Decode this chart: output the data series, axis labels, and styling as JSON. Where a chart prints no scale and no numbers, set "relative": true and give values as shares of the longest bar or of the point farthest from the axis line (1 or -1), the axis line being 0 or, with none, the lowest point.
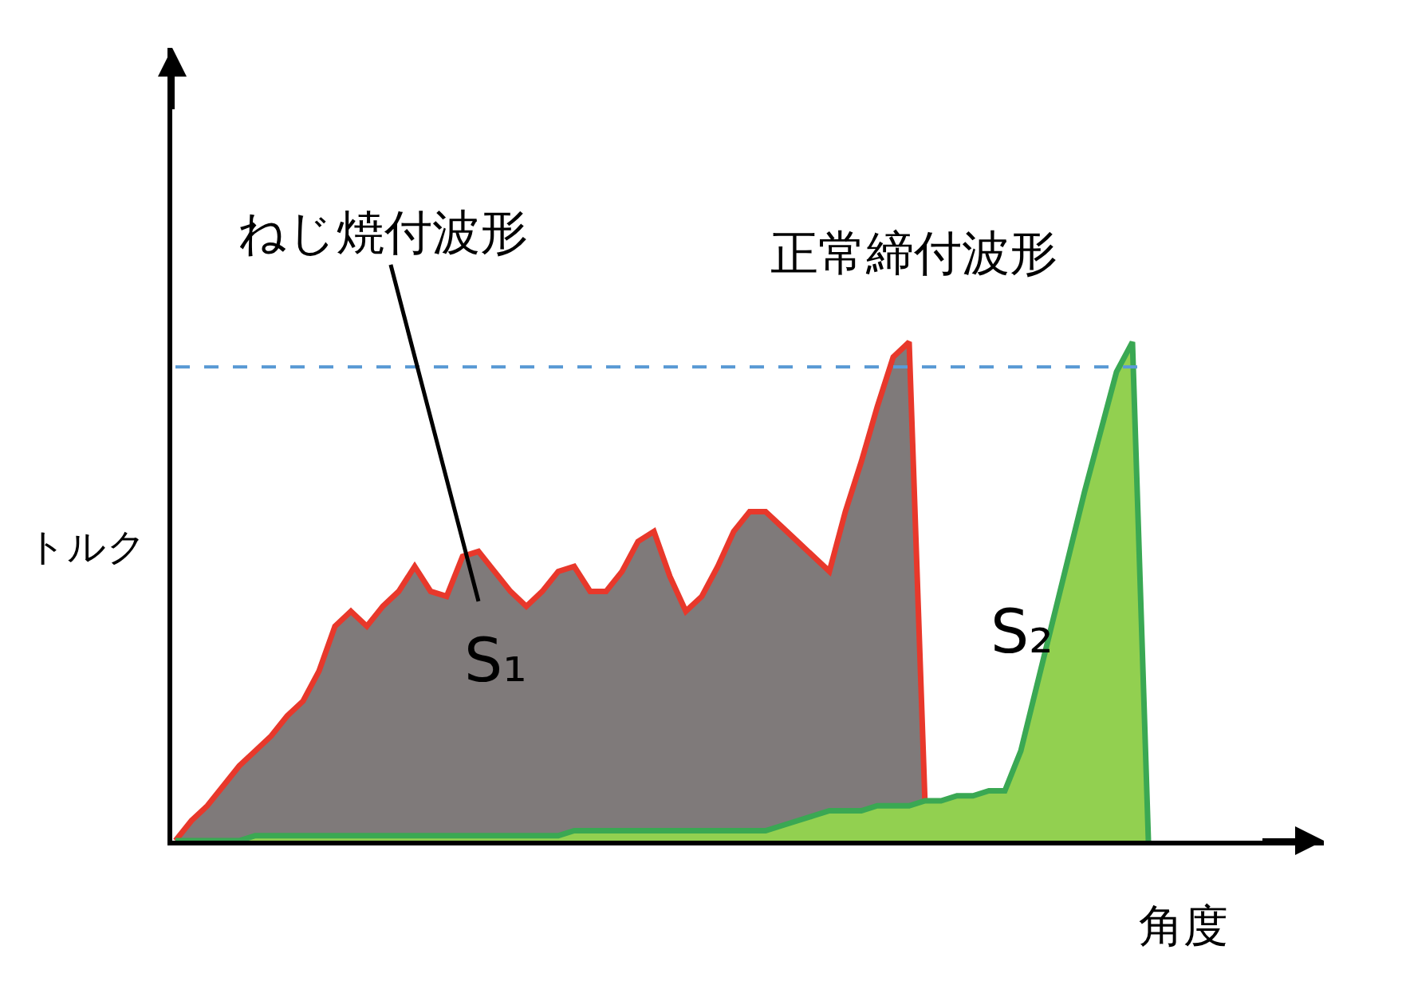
{
  "chart_data": {
    "type": "area",
    "relative": true,
    "xlabel": "角度",
    "ylabel": "トルク",
    "legend": false,
    "categories": [
      null,
      null,
      null,
      null,
      null,
      null,
      null,
      null,
      null,
      null,
      null,
      null,
      null,
      null,
      null,
      null,
      null,
      null,
      null,
      null,
      null,
      null,
      null,
      null,
      null,
      null,
      null,
      null,
      null,
      null,
      null,
      null,
      null,
      null,
      null,
      null,
      null,
      null,
      null,
      null,
      null,
      null,
      null,
      null,
      null,
      null,
      null,
      null,
      null,
      null,
      null,
      null,
      null,
      null,
      null,
      null,
      null,
      null,
      null,
      null,
      null,
      null
    ],
    "series": [
      {
        "color": "#e8382b",
        "values": [
          0,
          0.04,
          0.07,
          0.11,
          0.15,
          0.18,
          0.21,
          0.25,
          0.28,
          0.34,
          0.43,
          0.46,
          0.43,
          0.47,
          0.5,
          0.55,
          0.5,
          0.49,
          0.57,
          0.58,
          0.54,
          0.5,
          0.47,
          0.5,
          0.54,
          0.55,
          0.5,
          0.5,
          0.54,
          0.6,
          0.62,
          0.53,
          0.46,
          0.49,
          0.55,
          0.62,
          0.66,
          0.66,
          0.63,
          0.6,
          0.57,
          0.54,
          0.66,
          0.76,
          0.87,
          0.97,
          1.0,
          0.07,
          null,
          null,
          null,
          null,
          null,
          null,
          null,
          null,
          null,
          null,
          null,
          null,
          null,
          null
        ]
      },
      {
        "color": "#3aa853",
        "values": [
          0,
          0,
          0,
          0,
          0,
          0.01,
          0.01,
          0.01,
          0.01,
          0.01,
          0.01,
          0.01,
          0.01,
          0.01,
          0.01,
          0.01,
          0.01,
          0.01,
          0.01,
          0.01,
          0.01,
          0.01,
          0.01,
          0.01,
          0.01,
          0.02,
          0.02,
          0.02,
          0.02,
          0.02,
          0.02,
          0.02,
          0.02,
          0.02,
          0.02,
          0.02,
          0.02,
          0.02,
          0.03,
          0.04,
          0.05,
          0.06,
          0.06,
          0.06,
          0.07,
          0.07,
          0.07,
          0.08,
          0.08,
          0.09,
          0.09,
          0.1,
          0.1,
          0.18,
          0.31,
          0.44,
          0.57,
          0.7,
          0.82,
          0.94,
          1.0,
          0
        ]
      }
    ],
    "ref_lines": [
      {
        "axis": "y",
        "value": 0.95,
        "color": "#5b9bd5",
        "line_style": "dashed"
      }
    ],
    "annotations": [
      "ねじ焼付波形",
      "正常締付波形",
      "S₁",
      "S₂"
    ]
  }
}
